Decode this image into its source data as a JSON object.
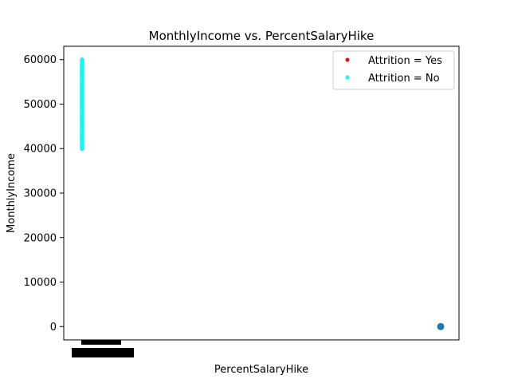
{
  "chart_data": {
    "type": "scatter",
    "title": "MonthlyIncome vs. PercentSalaryHike",
    "xlabel": "PercentSalaryHike",
    "ylabel": "MonthlyIncome",
    "ylim": [
      -3000,
      63000
    ],
    "yticks": [
      0,
      10000,
      20000,
      30000,
      40000,
      50000,
      60000
    ],
    "legend": {
      "placement": "top-right",
      "entries": [
        {
          "label": "Attrition = Yes",
          "color": "#ff0000"
        },
        {
          "label": "Attrition = No",
          "color": "#00ffff"
        }
      ]
    },
    "series": [
      {
        "name": "Attrition = Yes",
        "color": "#ff0000",
        "x_position": 0,
        "y_range": [
          40000,
          60000
        ]
      },
      {
        "name": "Attrition = No",
        "color": "#00ffff",
        "x_position": 0,
        "y_range": [
          40000,
          60000
        ]
      }
    ],
    "extra_points": [
      {
        "x_position": 1,
        "y": 0,
        "color": "#1f77b4"
      }
    ]
  }
}
